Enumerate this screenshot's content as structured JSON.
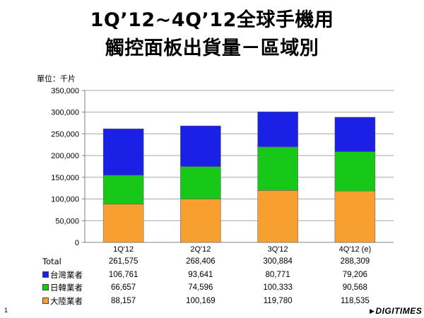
{
  "titles": {
    "line1": "1Q’12~4Q’12全球手機用",
    "line2": "觸控面板出貨量－區域別"
  },
  "unit_label": "單位：千片",
  "chart_data": {
    "type": "bar",
    "stacked": true,
    "categories": [
      "1Q'12",
      "2Q'12",
      "3Q'12",
      "4Q'12 (e)"
    ],
    "ylim": [
      0,
      350000
    ],
    "yticks": [
      0,
      50000,
      100000,
      150000,
      200000,
      250000,
      300000,
      350000
    ],
    "ytick_labels": [
      "0",
      "50,000",
      "100,000",
      "150,000",
      "200,000",
      "250,000",
      "300,000",
      "350,000"
    ],
    "grid": true,
    "series": [
      {
        "name": "大陸業者",
        "color": "#F7A030",
        "values": [
          88157,
          100169,
          119780,
          118535
        ],
        "labels": [
          "88,157",
          "100,169",
          "119,780",
          "118,535"
        ]
      },
      {
        "name": "日韓業者",
        "color": "#18C818",
        "values": [
          66657,
          74596,
          100333,
          90568
        ],
        "labels": [
          "66,657",
          "74,596",
          "100,333",
          "90,568"
        ]
      },
      {
        "name": "台灣業者",
        "color": "#1A20E6",
        "values": [
          106761,
          93641,
          80771,
          79206
        ],
        "labels": [
          "106,761",
          "93,641",
          "80,771",
          "79,206"
        ]
      }
    ],
    "totals": {
      "label": "Total",
      "values": [
        "261,575",
        "268,406",
        "300,884",
        "288,309"
      ]
    }
  },
  "page_number": "1",
  "brand": {
    "text": "DIGITIMES",
    "mark": "▶"
  }
}
